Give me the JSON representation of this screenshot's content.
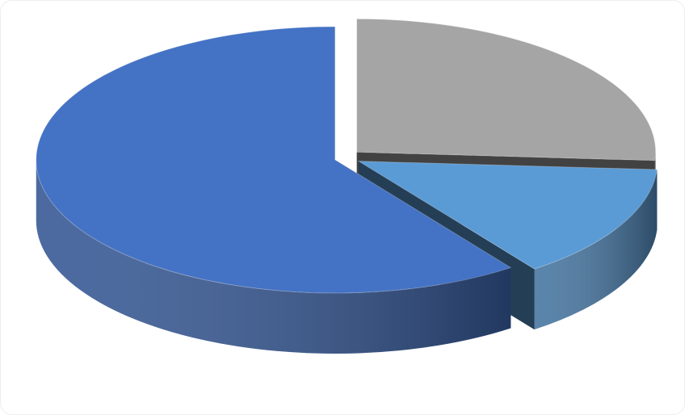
{
  "chart_data": {
    "type": "pie",
    "style": "3d-exploded",
    "values": [
      26,
      14,
      60
    ],
    "colors": [
      "#a5a5a5",
      "#5b9bd5",
      "#4472c4"
    ]
  }
}
